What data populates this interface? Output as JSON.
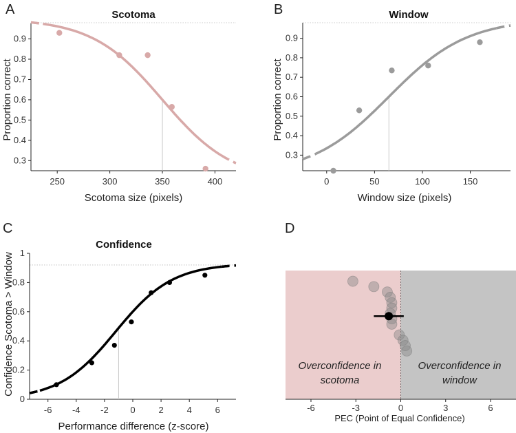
{
  "panel_letters": {
    "a": "A",
    "b": "B",
    "c": "C",
    "d": "D"
  },
  "region_text": {
    "left_line1": "Overconfidence in",
    "left_line2": "scotoma",
    "right_line1": "Overconfidence in",
    "right_line2": "window"
  },
  "colors": {
    "scotoma": "#d8a9a8",
    "window": "#9b9b9b",
    "confidence": "#000000",
    "scotoma_region": "#ebcdcd",
    "window_region": "#c4c4c4"
  },
  "chart_data": [
    {
      "id": "A",
      "type": "scatter",
      "title": "Scotoma",
      "xlabel": "Scotoma size (pixels)",
      "ylabel": "Proportion correct",
      "xlim": [
        225,
        420
      ],
      "ylim": [
        0.25,
        0.98
      ],
      "xticks": [
        250,
        300,
        350,
        400
      ],
      "yticks": [
        0.3,
        0.4,
        0.5,
        0.6,
        0.7,
        0.8,
        0.9
      ],
      "points": [
        {
          "x": 252,
          "y": 0.93
        },
        {
          "x": 309,
          "y": 0.82
        },
        {
          "x": 336,
          "y": 0.82
        },
        {
          "x": 359,
          "y": 0.565
        },
        {
          "x": 391,
          "y": 0.26
        }
      ],
      "fit": {
        "form": "logistic_decreasing",
        "midpoint": 350,
        "slope": 0.03,
        "lower": 0.2,
        "upper": 1.0
      },
      "threshold_x": 350,
      "reference_y": 0.98
    },
    {
      "id": "B",
      "type": "scatter",
      "title": "Window",
      "xlabel": "Window size (pixels)",
      "ylabel": "Proportion correct",
      "xlim": [
        -25,
        192
      ],
      "ylim": [
        0.22,
        0.98
      ],
      "xticks": [
        0,
        50,
        100,
        150
      ],
      "yticks": [
        0.3,
        0.4,
        0.5,
        0.6,
        0.7,
        0.8,
        0.9
      ],
      "points": [
        {
          "x": 7,
          "y": 0.22
        },
        {
          "x": 34,
          "y": 0.53
        },
        {
          "x": 68,
          "y": 0.735
        },
        {
          "x": 106,
          "y": 0.76
        },
        {
          "x": 160,
          "y": 0.88
        }
      ],
      "fit": {
        "form": "logistic_increasing",
        "midpoint": 65,
        "slope": 0.0245,
        "lower": 0.2,
        "upper": 1.0
      },
      "threshold_x": 65,
      "reference_y": 0.98
    },
    {
      "id": "C",
      "type": "scatter",
      "title": "Confidence",
      "xlabel": "Performance difference (z-score)",
      "ylabel": "Confidence Scotoma > Window",
      "xlim": [
        -7.3,
        7.3
      ],
      "ylim": [
        0,
        1
      ],
      "xticks": [
        -6,
        -4,
        -2,
        0,
        2,
        4,
        6
      ],
      "yticks": [
        0,
        0.2,
        0.4,
        0.6,
        0.8,
        1
      ],
      "points": [
        {
          "x": -5.4,
          "y": 0.1
        },
        {
          "x": -2.9,
          "y": 0.25
        },
        {
          "x": -1.3,
          "y": 0.37
        },
        {
          "x": -0.1,
          "y": 0.53
        },
        {
          "x": 1.3,
          "y": 0.73
        },
        {
          "x": 2.6,
          "y": 0.8
        },
        {
          "x": 5.1,
          "y": 0.85
        }
      ],
      "fit": {
        "form": "logistic_increasing",
        "midpoint": -1.2,
        "slope": 0.5,
        "lower": 0,
        "upper": 0.93
      },
      "threshold_x": -1.0,
      "reference_y": 0.92
    },
    {
      "id": "D",
      "type": "scatter",
      "title": "",
      "xlabel": "PEC (Point of Equal Confidence)",
      "ylabel": "",
      "xlim": [
        -7.7,
        7.7
      ],
      "ylim": [
        0,
        12
      ],
      "xticks": [
        -6,
        -3,
        0,
        3,
        6
      ],
      "zero_line_x": 0,
      "regions": [
        {
          "label": "Overconfidence in scotoma",
          "from": -7.7,
          "to": 0
        },
        {
          "label": "Overconfidence in window",
          "to": 7.7,
          "from": 0
        }
      ],
      "individual_points": [
        {
          "x": -3.2,
          "y": 11.0
        },
        {
          "x": -1.8,
          "y": 10.5
        },
        {
          "x": -0.9,
          "y": 10.0
        },
        {
          "x": -0.7,
          "y": 9.5
        },
        {
          "x": -0.6,
          "y": 9.0
        },
        {
          "x": -0.6,
          "y": 8.5
        },
        {
          "x": -0.7,
          "y": 8.0
        },
        {
          "x": -0.6,
          "y": 7.5
        },
        {
          "x": -0.6,
          "y": 7.0
        },
        {
          "x": -0.1,
          "y": 6.0
        },
        {
          "x": 0.15,
          "y": 5.5
        },
        {
          "x": 0.3,
          "y": 5.0
        },
        {
          "x": 0.4,
          "y": 4.5
        }
      ],
      "mean": {
        "x": -0.8,
        "y": 7.75,
        "ci_low": -1.8,
        "ci_high": 0.2
      }
    }
  ]
}
